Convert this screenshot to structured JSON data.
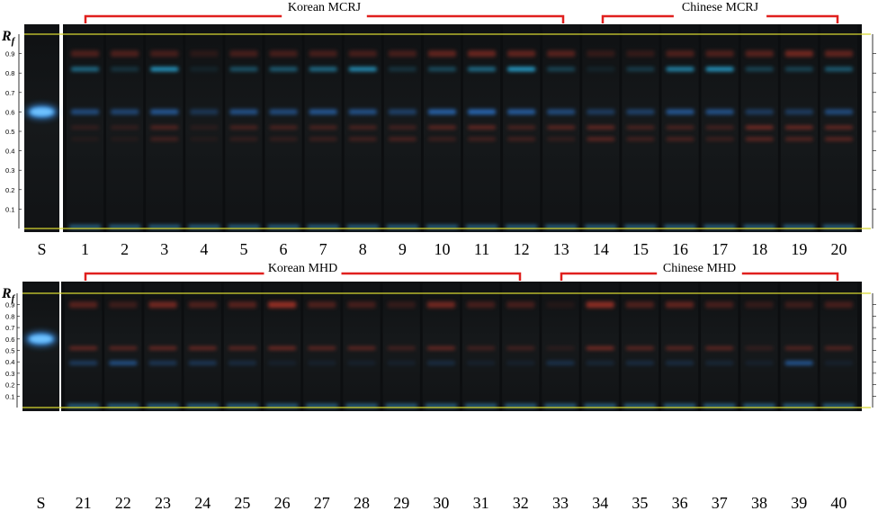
{
  "panels": [
    {
      "id": "top",
      "rf_label": "R",
      "rf_sub": "f",
      "standard_label": "S",
      "group_a": {
        "title": "Korean MCRJ"
      },
      "group_b": {
        "title": "Chinese MCRJ"
      },
      "lanes": [
        "1",
        "2",
        "3",
        "4",
        "5",
        "6",
        "7",
        "8",
        "9",
        "10",
        "11",
        "12",
        "13",
        "14",
        "15",
        "16",
        "17",
        "18",
        "19",
        "20"
      ],
      "scale_ticks": [
        "0.9",
        "0.8",
        "0.7",
        "0.6",
        "0.5",
        "0.4",
        "0.3",
        "0.2",
        "0.1"
      ],
      "blue_06": [
        0.5,
        0.45,
        0.6,
        0.3,
        0.55,
        0.5,
        0.6,
        0.55,
        0.4,
        0.7,
        0.75,
        0.65,
        0.5,
        0.35,
        0.4,
        0.6,
        0.55,
        0.35,
        0.35,
        0.5
      ],
      "cyan_082": [
        0.55,
        0.2,
        0.8,
        0.1,
        0.4,
        0.45,
        0.55,
        0.75,
        0.2,
        0.35,
        0.55,
        0.85,
        0.3,
        0.1,
        0.25,
        0.7,
        0.8,
        0.3,
        0.3,
        0.45
      ],
      "red_09": [
        0.35,
        0.35,
        0.3,
        0.15,
        0.3,
        0.3,
        0.3,
        0.3,
        0.3,
        0.45,
        0.5,
        0.45,
        0.4,
        0.2,
        0.2,
        0.35,
        0.35,
        0.4,
        0.55,
        0.45
      ],
      "red_052": [
        0.2,
        0.2,
        0.4,
        0.15,
        0.35,
        0.35,
        0.35,
        0.35,
        0.3,
        0.45,
        0.5,
        0.35,
        0.45,
        0.5,
        0.35,
        0.35,
        0.3,
        0.6,
        0.55,
        0.5
      ],
      "red_046": [
        0.1,
        0.1,
        0.3,
        0.1,
        0.2,
        0.2,
        0.25,
        0.3,
        0.35,
        0.25,
        0.3,
        0.3,
        0.2,
        0.45,
        0.3,
        0.35,
        0.25,
        0.45,
        0.4,
        0.45
      ]
    },
    {
      "id": "bottom",
      "rf_label": "R",
      "rf_sub": "f",
      "standard_label": "S",
      "group_a": {
        "title": "Korean MHD"
      },
      "group_b": {
        "title": "Chinese MHD"
      },
      "lanes": [
        "21",
        "22",
        "23",
        "24",
        "25",
        "26",
        "27",
        "28",
        "29",
        "30",
        "31",
        "32",
        "33",
        "34",
        "35",
        "36",
        "37",
        "38",
        "39",
        "40"
      ],
      "scale_ticks": [
        "0.9",
        "0.8",
        "0.7",
        "0.6",
        "0.5",
        "0.4",
        "0.3",
        "0.2",
        "0.1"
      ],
      "blue_06": [
        0,
        0,
        0,
        0,
        0,
        0,
        0,
        0,
        0,
        0,
        0,
        0,
        0,
        0,
        0,
        0,
        0,
        0,
        0,
        0
      ],
      "cyan_082": [
        0,
        0,
        0,
        0,
        0,
        0,
        0,
        0,
        0,
        0,
        0,
        0,
        0,
        0,
        0,
        0,
        0,
        0,
        0,
        0
      ],
      "red_09": [
        0.4,
        0.25,
        0.55,
        0.35,
        0.4,
        0.75,
        0.35,
        0.3,
        0.2,
        0.55,
        0.3,
        0.3,
        0.1,
        0.7,
        0.35,
        0.45,
        0.3,
        0.2,
        0.25,
        0.3
      ],
      "red_052": [
        0.5,
        0.45,
        0.5,
        0.5,
        0.45,
        0.55,
        0.45,
        0.45,
        0.3,
        0.5,
        0.3,
        0.3,
        0.15,
        0.6,
        0.45,
        0.45,
        0.45,
        0.2,
        0.4,
        0.4
      ],
      "blue_039": [
        0.35,
        0.55,
        0.3,
        0.3,
        0.2,
        0.1,
        0.1,
        0.1,
        0.1,
        0.2,
        0.1,
        0.1,
        0.25,
        0.15,
        0.2,
        0.2,
        0.15,
        0.1,
        0.6,
        0.1
      ]
    }
  ],
  "colors": {
    "bracket": "#e0201e",
    "frame_line": "#d8d830",
    "plate_bg": "#121416",
    "standard_spot": "#3a9cff",
    "red_band": "#c0392b",
    "blue_band": "#2f7fe0",
    "cyan_band": "#2bb5e8"
  }
}
